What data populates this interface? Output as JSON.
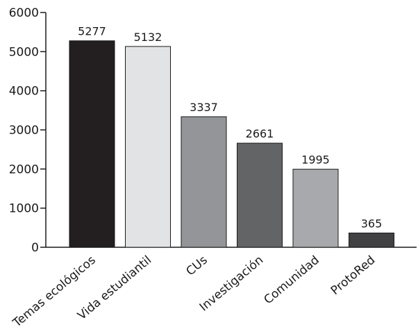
{
  "chart_data": {
    "type": "bar",
    "title": "",
    "xlabel": "",
    "ylabel": "",
    "ylim": [
      0,
      6000
    ],
    "yticks": [
      0,
      1000,
      2000,
      3000,
      4000,
      5000,
      6000
    ],
    "categories": [
      "Temas ecológicos",
      "Vida estudiantil",
      "CUs",
      "Investigación",
      "Comunidad",
      "ProtoRed"
    ],
    "values": [
      5277,
      5132,
      3337,
      2661,
      1995,
      365
    ],
    "bar_colors": [
      "#231f20",
      "#e2e3e5",
      "#939598",
      "#636466",
      "#a7a9ac",
      "#414042"
    ],
    "grid": false,
    "legend": "none"
  }
}
